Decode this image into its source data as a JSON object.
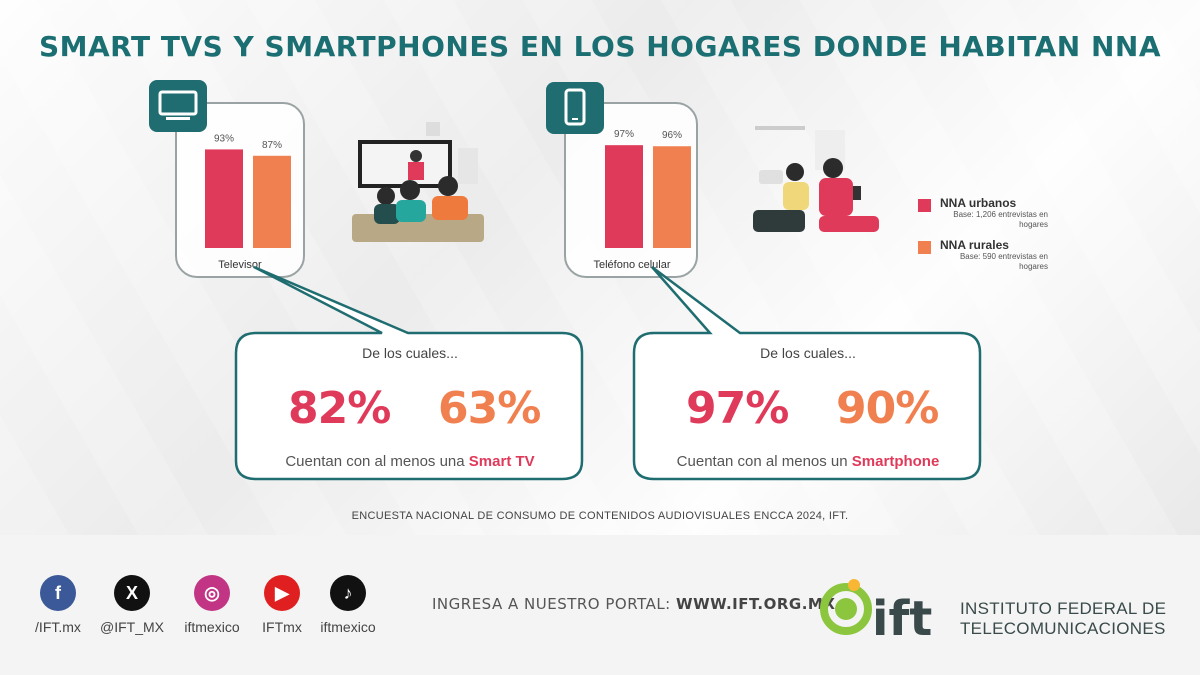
{
  "title": "SMART TVS Y SMARTPHONES EN LOS HOGARES DONDE HABITAN NNA",
  "colors": {
    "urban": "#e03a5a",
    "rural": "#f0804f",
    "teal": "#1f6d70"
  },
  "legend": [
    {
      "name": "NNA urbanos",
      "base": "Base: 1,206 entrevistas en hogares",
      "color": "#e03a5a"
    },
    {
      "name": "NNA rurales",
      "base": "Base: 590 entrevistas en hogares",
      "color": "#f0804f"
    }
  ],
  "chart_data": [
    {
      "type": "bar",
      "categories": [
        "Televisor"
      ],
      "series": [
        {
          "name": "NNA urbanos",
          "values": [
            93
          ]
        },
        {
          "name": "NNA rurales",
          "values": [
            87
          ]
        }
      ],
      "value_labels": [
        "93%",
        "87%"
      ],
      "icon": "tv-icon",
      "ylim": [
        0,
        100
      ]
    },
    {
      "type": "bar",
      "categories": [
        "Teléfono celular"
      ],
      "series": [
        {
          "name": "NNA urbanos",
          "values": [
            97
          ]
        },
        {
          "name": "NNA rurales",
          "values": [
            96
          ]
        }
      ],
      "value_labels": [
        "97%",
        "96%"
      ],
      "icon": "smartphone-icon",
      "ylim": [
        0,
        100
      ]
    }
  ],
  "callouts": [
    {
      "intro": "De los cuales...",
      "urban": "82%",
      "rural": "63%",
      "text": "Cuentan con al menos una ",
      "highlight": "Smart TV"
    },
    {
      "intro": "De los cuales...",
      "urban": "97%",
      "rural": "90%",
      "text": "Cuentan con al menos un ",
      "highlight": "Smartphone"
    }
  ],
  "source": "ENCUESTA NACIONAL DE CONSUMO DE CONTENIDOS AUDIOVISUALES ENCCA 2024, IFT.",
  "footer": {
    "social": [
      {
        "icon": "facebook-icon",
        "glyph": "f",
        "label": "/IFT.mx",
        "color": "#3b5998"
      },
      {
        "icon": "x-icon",
        "glyph": "X",
        "label": "@IFT_MX",
        "color": "#111111"
      },
      {
        "icon": "instagram-icon",
        "glyph": "◎",
        "label": "iftmexico",
        "color": "#c13584"
      },
      {
        "icon": "youtube-icon",
        "glyph": "▶",
        "label": "IFTmx",
        "color": "#e02020"
      },
      {
        "icon": "tiktok-icon",
        "glyph": "♪",
        "label": "iftmexico",
        "color": "#111111"
      }
    ],
    "portal_prefix": "INGRESA A NUESTRO PORTAL:",
    "portal_url": "WWW.IFT.ORG.MX",
    "org_line1": "INSTITUTO FEDERAL DE",
    "org_line2": "TELECOMUNICACIONES",
    "logo_text": "ift"
  }
}
